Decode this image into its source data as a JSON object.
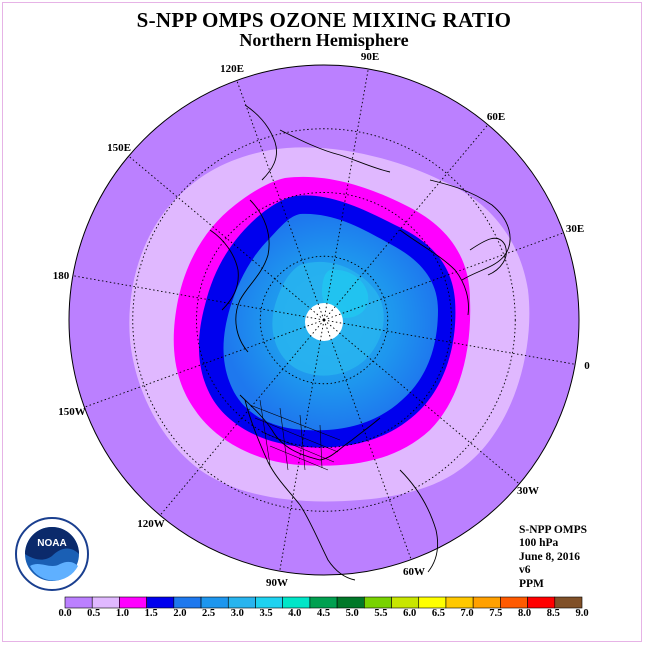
{
  "title": "S-NPP OMPS OZONE MIXING RATIO",
  "subtitle": "Northern Hemisphere",
  "longitude_labels": [
    "90E",
    "60E",
    "30E",
    "0",
    "30W",
    "60W",
    "90W",
    "120W",
    "150W",
    "180",
    "150E",
    "120E"
  ],
  "info_lines": [
    "S-NPP OMPS",
    "100 hPa",
    "June 8, 2016",
    "v6",
    "PPM"
  ],
  "logo_text": "NOAA",
  "legend": {
    "ticks": [
      "0.0",
      "0.5",
      "1.0",
      "1.5",
      "2.0",
      "2.5",
      "3.0",
      "3.5",
      "4.0",
      "4.5",
      "5.0",
      "5.5",
      "6.0",
      "6.5",
      "7.0",
      "7.5",
      "8.0",
      "8.5",
      "9.0"
    ],
    "colors": [
      "#bb80ff",
      "#e0b8ff",
      "#ff00ff",
      "#0000ee",
      "#1e78ee",
      "#1e96ee",
      "#28b4ee",
      "#1ed2f0",
      "#00e6c8",
      "#00a050",
      "#007828",
      "#78d200",
      "#c8e600",
      "#ffff00",
      "#ffc800",
      "#ffa000",
      "#ff5a00",
      "#ff0000",
      "#805028"
    ]
  }
}
